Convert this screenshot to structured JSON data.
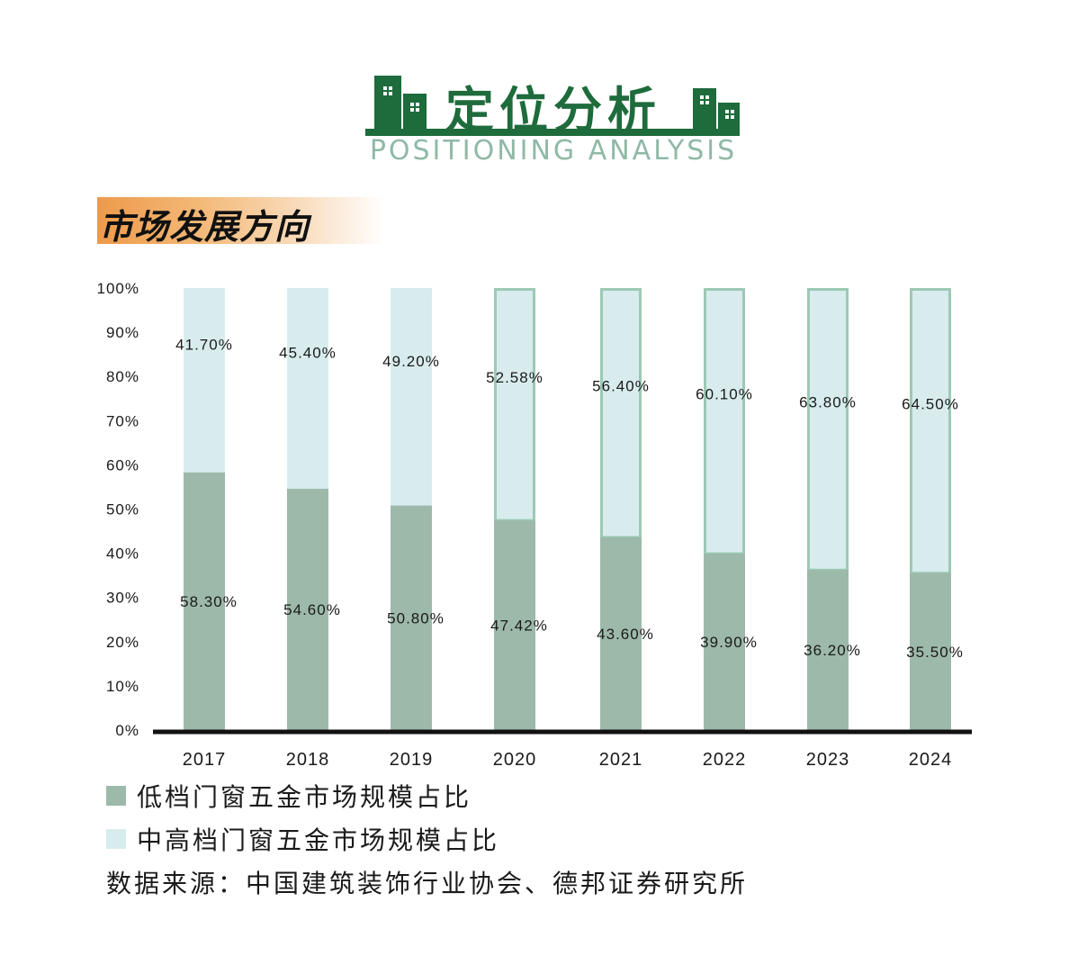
{
  "header": {
    "title_cn": "定位分析",
    "title_en": "POSITIONING ANALYSIS"
  },
  "section": {
    "title": "市场发展方向"
  },
  "colors": {
    "brand_green": "#1e6b3c",
    "low_end": "#9db9aa",
    "mid_high": "#d8ecee",
    "mid_high_border": "#9cc9b4",
    "accent_orange": "#ed9a4a"
  },
  "chart_data": {
    "type": "bar",
    "stacked": true,
    "categories": [
      "2017",
      "2018",
      "2019",
      "2020",
      "2021",
      "2022",
      "2023",
      "2024"
    ],
    "series": [
      {
        "name": "低档门窗五金市场规模占比",
        "values": [
          58.3,
          54.6,
          50.8,
          47.42,
          43.6,
          39.9,
          36.2,
          35.5
        ],
        "labels": [
          "58.30%",
          "54.60%",
          "50.80%",
          "47.42%",
          "43.60%",
          "39.90%",
          "36.20%",
          "35.50%"
        ]
      },
      {
        "name": "中高档门窗五金市场规模占比",
        "values": [
          41.7,
          45.4,
          49.2,
          52.58,
          56.4,
          60.1,
          63.8,
          64.5
        ],
        "labels": [
          "41.70%",
          "45.40%",
          "49.20%",
          "52.58%",
          "56.40%",
          "60.10%",
          "63.80%",
          "64.50%"
        ]
      }
    ],
    "y_ticks": [
      "0%",
      "10%",
      "20%",
      "30%",
      "40%",
      "50%",
      "60%",
      "70%",
      "80%",
      "90%",
      "100%"
    ],
    "ylim": [
      0,
      100
    ],
    "grid": false,
    "legend_position": "bottom-left"
  },
  "legend": {
    "low": "低档门窗五金市场规模占比",
    "high": "中高档门窗五金市场规模占比"
  },
  "source": "数据来源：中国建筑装饰行业协会、德邦证券研究所"
}
